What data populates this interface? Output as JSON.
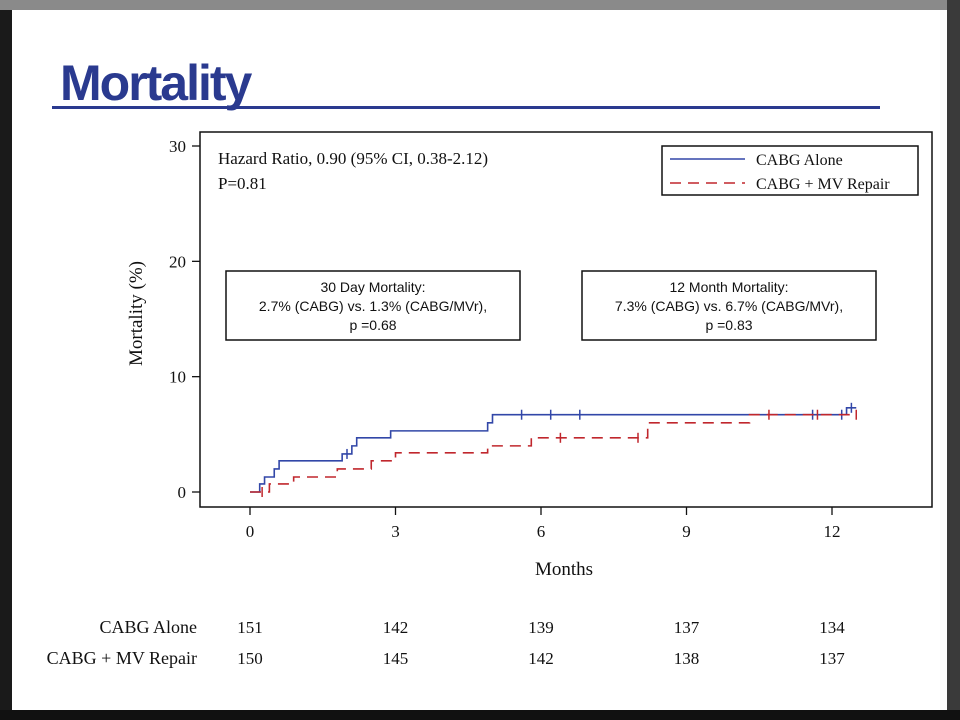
{
  "slide": {
    "title": "Mortality"
  },
  "stats": {
    "hazard_ratio": "Hazard Ratio, 0.90 (95% CI, 0.38-2.12)",
    "p_value": "P=0.81"
  },
  "legend": {
    "series_1": "CABG Alone",
    "series_2": "CABG + MV Repair"
  },
  "annotations": {
    "box_30day": {
      "line1": "30 Day Mortality:",
      "line2": "2.7% (CABG) vs. 1.3% (CABG/MVr),",
      "line3": "p =0.68"
    },
    "box_12month": {
      "line1": "12 Month Mortality:",
      "line2": "7.3% (CABG) vs. 6.7% (CABG/MVr),",
      "line3": "p =0.83"
    }
  },
  "risk_table": {
    "rows": [
      {
        "label": "CABG Alone",
        "values": [
          "151",
          "142",
          "139",
          "137",
          "134"
        ]
      },
      {
        "label": "CABG + MV Repair",
        "values": [
          "150",
          "145",
          "142",
          "138",
          "137"
        ]
      }
    ]
  },
  "colors": {
    "title": "#2a3a8f",
    "series_1": "#3247a8",
    "series_2": "#c0272d"
  },
  "chart_data": {
    "type": "line",
    "xlabel": "Months",
    "ylabel": "Mortality (%)",
    "xlim": [
      -1,
      14
    ],
    "ylim": [
      -0.5,
      31
    ],
    "x_ticks": [
      0,
      3,
      6,
      9,
      12
    ],
    "y_ticks": [
      0,
      10,
      20,
      30
    ],
    "legend_position": "top-right",
    "grid": false,
    "series": [
      {
        "name": "CABG Alone",
        "style": "solid",
        "steps": [
          [
            0,
            0
          ],
          [
            0.2,
            0.7
          ],
          [
            0.3,
            1.3
          ],
          [
            0.5,
            2.0
          ],
          [
            0.6,
            2.7
          ],
          [
            1.9,
            3.3
          ],
          [
            2.1,
            4.0
          ],
          [
            2.2,
            4.7
          ],
          [
            2.9,
            5.3
          ],
          [
            4.9,
            6.0
          ],
          [
            5.0,
            6.7
          ],
          [
            12.3,
            7.3
          ],
          [
            12.5,
            7.3
          ]
        ],
        "censored": [
          [
            2.0,
            3.3
          ],
          [
            5.6,
            6.7
          ],
          [
            6.2,
            6.7
          ],
          [
            6.8,
            6.7
          ],
          [
            11.6,
            6.7
          ],
          [
            12.2,
            6.7
          ],
          [
            12.4,
            7.3
          ]
        ]
      },
      {
        "name": "CABG + MV Repair",
        "style": "dashed",
        "steps": [
          [
            0,
            0
          ],
          [
            0.4,
            0.7
          ],
          [
            0.9,
            1.3
          ],
          [
            1.8,
            2.0
          ],
          [
            2.5,
            2.7
          ],
          [
            3.0,
            3.4
          ],
          [
            4.9,
            4.0
          ],
          [
            5.8,
            4.7
          ],
          [
            8.2,
            6.0
          ],
          [
            10.3,
            6.7
          ],
          [
            12.5,
            6.7
          ]
        ],
        "censored": [
          [
            0.25,
            0
          ],
          [
            6.4,
            4.7
          ],
          [
            8.0,
            4.7
          ],
          [
            10.7,
            6.7
          ],
          [
            11.7,
            6.7
          ],
          [
            12.5,
            6.7
          ]
        ]
      }
    ]
  }
}
